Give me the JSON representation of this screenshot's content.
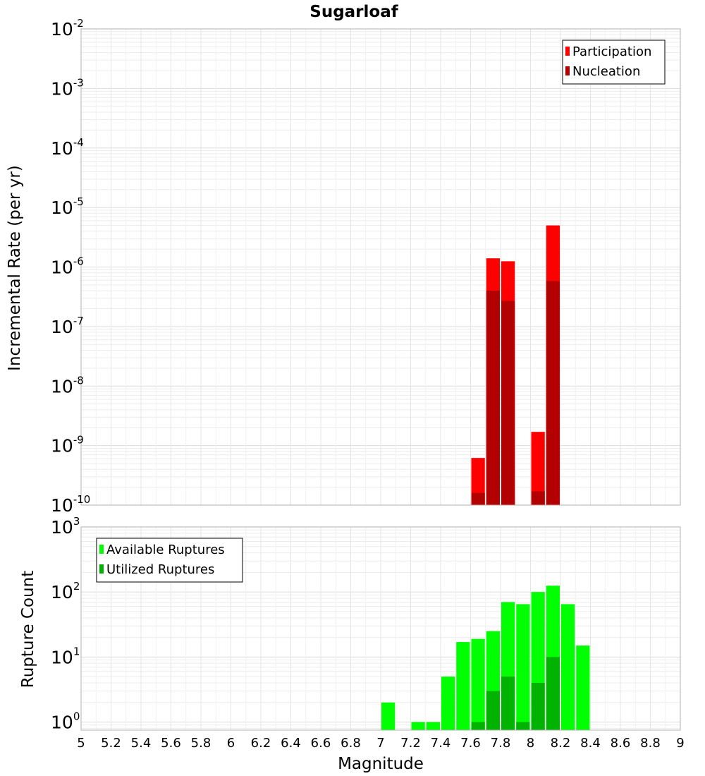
{
  "chart_data": [
    {
      "type": "bar",
      "title": "Sugarloaf",
      "xlabel": "Magnitude",
      "ylabel": "Incremental Rate (per yr)",
      "yscale": "log",
      "ylim": [
        1e-10,
        0.01
      ],
      "xlim": [
        5,
        9
      ],
      "bar_width": 0.1,
      "legend_position": "top-right",
      "y_ticks": [
        {
          "base": "10",
          "exp": "-10",
          "value": 1e-10
        },
        {
          "base": "10",
          "exp": "-9",
          "value": 1e-09
        },
        {
          "base": "10",
          "exp": "-8",
          "value": 1e-08
        },
        {
          "base": "10",
          "exp": "-7",
          "value": 1e-07
        },
        {
          "base": "10",
          "exp": "-6",
          "value": 1e-06
        },
        {
          "base": "10",
          "exp": "-5",
          "value": 1e-05
        },
        {
          "base": "10",
          "exp": "-4",
          "value": 0.0001
        },
        {
          "base": "10",
          "exp": "-3",
          "value": 0.001
        },
        {
          "base": "10",
          "exp": "-2",
          "value": 0.01
        }
      ],
      "series": [
        {
          "name": "Participation",
          "color": "#ff0000",
          "x": [
            7.65,
            7.75,
            7.85,
            8.05,
            8.15
          ],
          "values": [
            6.2e-10,
            1.4e-06,
            1.25e-06,
            1.7e-09,
            5e-06
          ]
        },
        {
          "name": "Nucleation",
          "color": "#b30000",
          "x": [
            7.65,
            7.75,
            7.85,
            8.05,
            8.15
          ],
          "values": [
            1.6e-10,
            4e-07,
            2.7e-07,
            1.7e-10,
            5.8e-07
          ]
        }
      ]
    },
    {
      "type": "bar",
      "title": "",
      "xlabel": "Magnitude",
      "ylabel": "Rupture Count",
      "yscale": "log",
      "ylim": [
        0.75,
        1000
      ],
      "xlim": [
        5,
        9
      ],
      "bar_width": 0.1,
      "legend_position": "top-left",
      "y_ticks": [
        {
          "base": "10",
          "exp": "0",
          "value": 1
        },
        {
          "base": "10",
          "exp": "1",
          "value": 10
        },
        {
          "base": "10",
          "exp": "2",
          "value": 100
        },
        {
          "base": "10",
          "exp": "3",
          "value": 1000
        }
      ],
      "x_ticks": [
        "5",
        "5.2",
        "5.4",
        "5.6",
        "5.8",
        "6",
        "6.2",
        "6.4",
        "6.6",
        "6.8",
        "7",
        "7.2",
        "7.4",
        "7.6",
        "7.8",
        "8",
        "8.2",
        "8.4",
        "8.6",
        "8.8",
        "9"
      ],
      "series": [
        {
          "name": "Available Ruptures",
          "color": "#00ff00",
          "x": [
            7.05,
            7.25,
            7.35,
            7.45,
            7.55,
            7.65,
            7.75,
            7.85,
            7.95,
            8.05,
            8.15,
            8.25,
            8.35
          ],
          "values": [
            2,
            1,
            1,
            5,
            17,
            19,
            25,
            70,
            65,
            100,
            125,
            65,
            15
          ]
        },
        {
          "name": "Utilized Ruptures",
          "color": "#00b300",
          "x": [
            7.65,
            7.75,
            7.85,
            7.95,
            8.05,
            8.15
          ],
          "values": [
            1,
            3,
            5,
            1,
            4,
            10
          ]
        }
      ]
    }
  ]
}
